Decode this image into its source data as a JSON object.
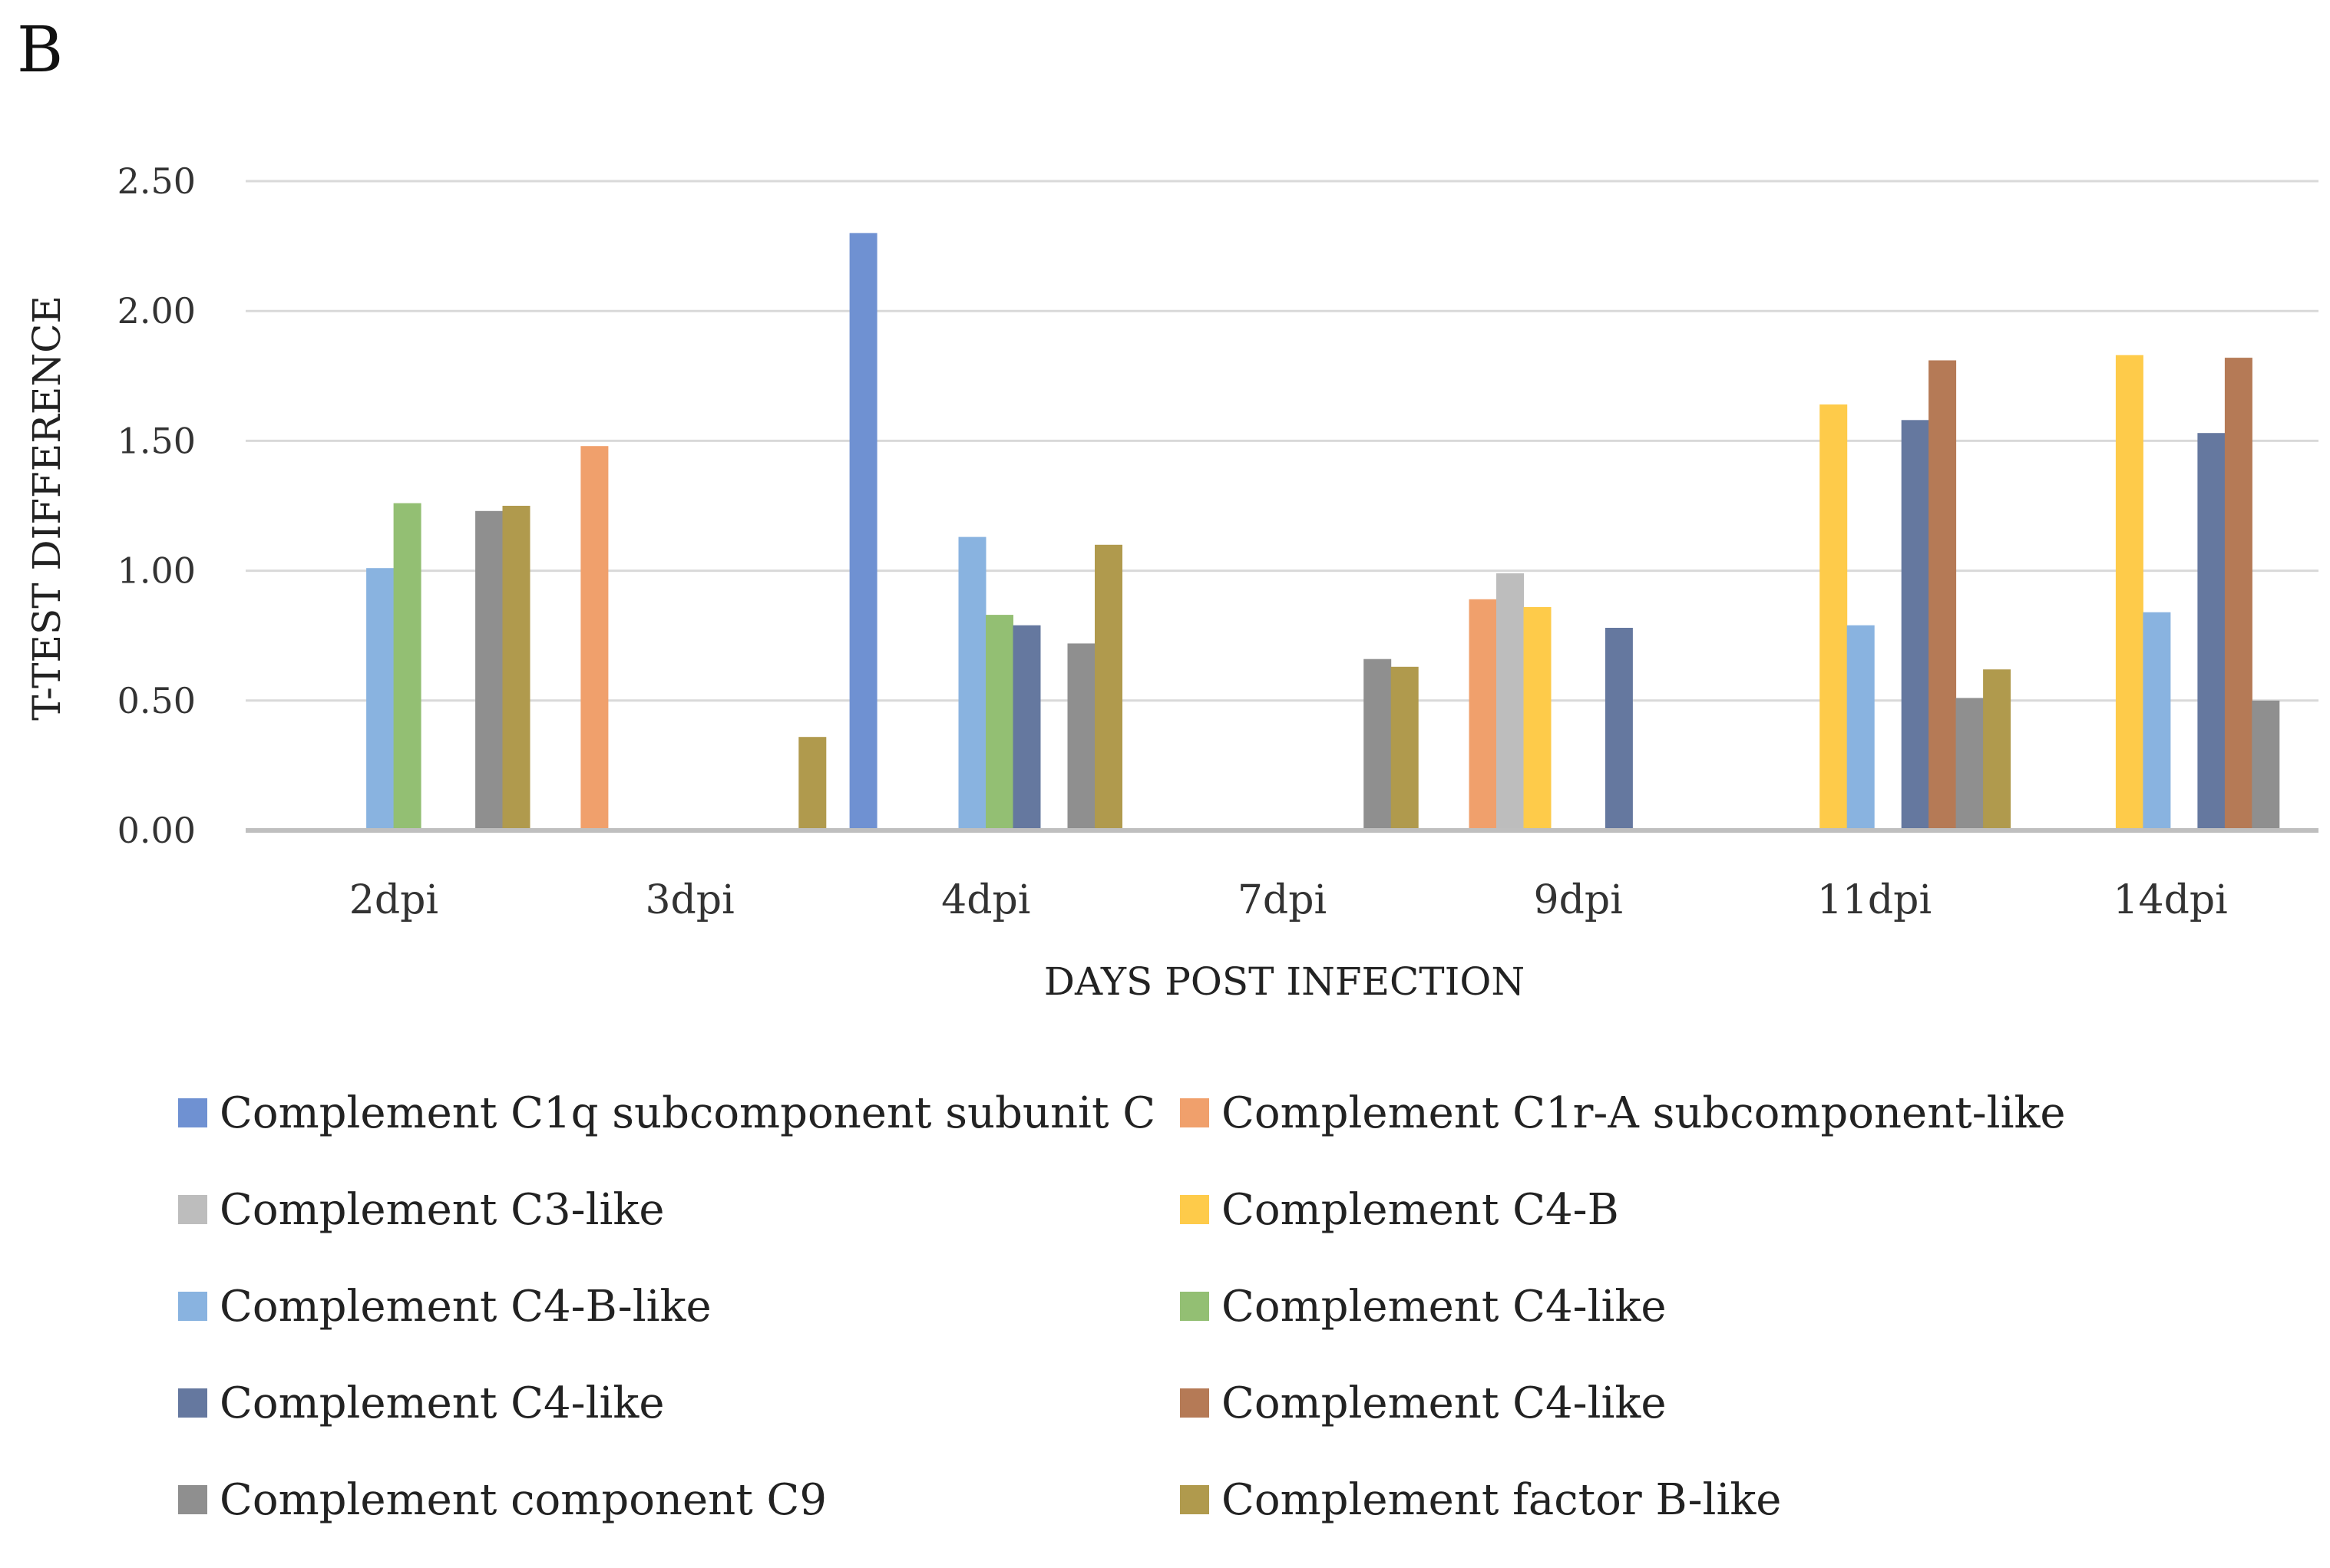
{
  "panel_label": "B",
  "chart_data": {
    "type": "bar",
    "title": "",
    "xlabel": "DAYS POST INFECTION",
    "ylabel": "T-TEST DIFFERENCE",
    "ylim": [
      0,
      2.5
    ],
    "yticks": [
      "0.00",
      "0.50",
      "1.00",
      "1.50",
      "2.00",
      "2.50"
    ],
    "grid": true,
    "legend_position": "bottom",
    "categories": [
      "2dpi",
      "3dpi",
      "4dpi",
      "7dpi",
      "9dpi",
      "11dpi",
      "14dpi"
    ],
    "series": [
      {
        "name": "Complement C1q subcomponent subunit C",
        "color": "#6f91d2",
        "values": [
          0,
          0,
          2.3,
          0,
          0,
          0,
          0
        ]
      },
      {
        "name": "Complement C1r-A subcomponent-like",
        "color": "#f0a06c",
        "values": [
          0,
          1.48,
          0,
          0,
          0.89,
          0,
          0
        ]
      },
      {
        "name": "Complement C3-like",
        "color": "#bdbdbd",
        "values": [
          0,
          0,
          0,
          0,
          0.99,
          0,
          0
        ]
      },
      {
        "name": "Complement C4-B",
        "color": "#fecb4a",
        "values": [
          0,
          0,
          0,
          0,
          0.86,
          1.64,
          1.83
        ]
      },
      {
        "name": "Complement C4-B-like",
        "color": "#89b3e0",
        "values": [
          1.01,
          0,
          1.13,
          0,
          0,
          0.79,
          0.84
        ]
      },
      {
        "name": "Complement C4-like",
        "color": "#93bf73",
        "values": [
          1.26,
          0,
          0.83,
          0,
          0,
          0,
          0
        ]
      },
      {
        "name": "Complement C4-like",
        "color": "#65789f",
        "values": [
          0,
          0,
          0.79,
          0,
          0.78,
          1.58,
          1.53
        ]
      },
      {
        "name": "Complement C4-like",
        "color": "#b57a56",
        "values": [
          0,
          0,
          0,
          0,
          0,
          1.81,
          1.82
        ]
      },
      {
        "name": "Complement component C9",
        "color": "#8f8f8f",
        "values": [
          1.23,
          0,
          0.72,
          0.66,
          0,
          0.51,
          0.5
        ]
      },
      {
        "name": "Complement factor B-like",
        "color": "#b09a4d",
        "values": [
          1.25,
          0.36,
          1.1,
          0.63,
          0,
          0.62,
          0
        ]
      }
    ]
  }
}
